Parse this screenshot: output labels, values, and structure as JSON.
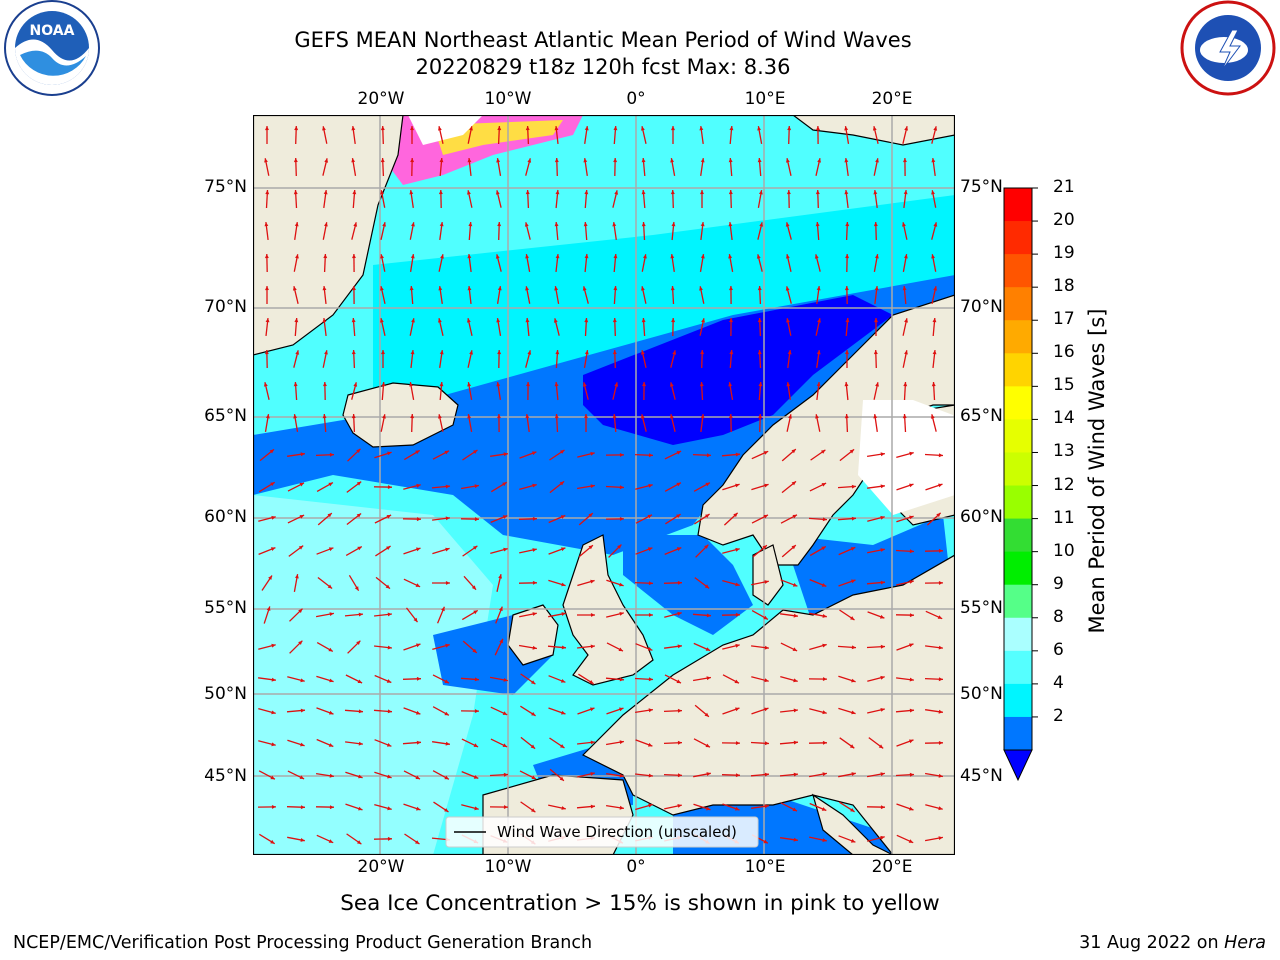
{
  "title": {
    "line1": "GEFS MEAN Northeast Atlantic Mean Period of Wind Waves",
    "line2": "20220829 t18z 120h fcst   Max: 8.36"
  },
  "logos": {
    "left": {
      "name": "NOARA-logo",
      "text": "NOAA",
      "ring_text": "NATIONAL OCEANIC AND ATMOSPHERIC ADMINISTRATION · U.S. DEPARTMENT OF COMMERCE"
    },
    "right": {
      "name": "national-weather-service-logo",
      "ring_text": "NATIONAL WEATHER SERVICE"
    }
  },
  "map": {
    "x_ticks_top": [
      "20°W",
      "10°W",
      "0°",
      "10°E",
      "20°E"
    ],
    "x_ticks_bottom": [
      "20°W",
      "10°W",
      "0°",
      "10°E",
      "20°E"
    ],
    "y_ticks_left": [
      "75°N",
      "70°N",
      "65°N",
      "60°N",
      "55°N",
      "50°N",
      "45°N"
    ],
    "y_ticks_right": [
      "75°N",
      "70°N",
      "65°N",
      "60°N",
      "55°N",
      "50°N",
      "45°N"
    ],
    "legend_label": "Wind Wave Direction (unscaled)",
    "land_color": "#efecdc",
    "arrow_color": "#dd1111"
  },
  "colorbar": {
    "label": "Mean Period of Wind Waves [s]",
    "ticks": [
      "21",
      "20",
      "19",
      "18",
      "17",
      "16",
      "15",
      "14",
      "13",
      "12",
      "11",
      "10",
      "9",
      "8",
      "6",
      "4",
      "2"
    ],
    "colors": [
      "#ff0000",
      "#ff2a00",
      "#ff5500",
      "#ff8000",
      "#ffaa00",
      "#ffd400",
      "#ffff00",
      "#e6ff00",
      "#ccff00",
      "#99ff00",
      "#33dd33",
      "#00ee00",
      "#55ff88",
      "#aaffff",
      "#55ffff",
      "#00f5ff",
      "#0077ff"
    ],
    "under_color": "#0000ff"
  },
  "caption": "Sea Ice Concentration > 15% is shown in pink to yellow",
  "footer": {
    "left": "NCEP/EMC/Verification Post Processing Product Generation Branch",
    "right_prefix": "31 Aug 2022 on ",
    "right_italic": "Hera"
  }
}
